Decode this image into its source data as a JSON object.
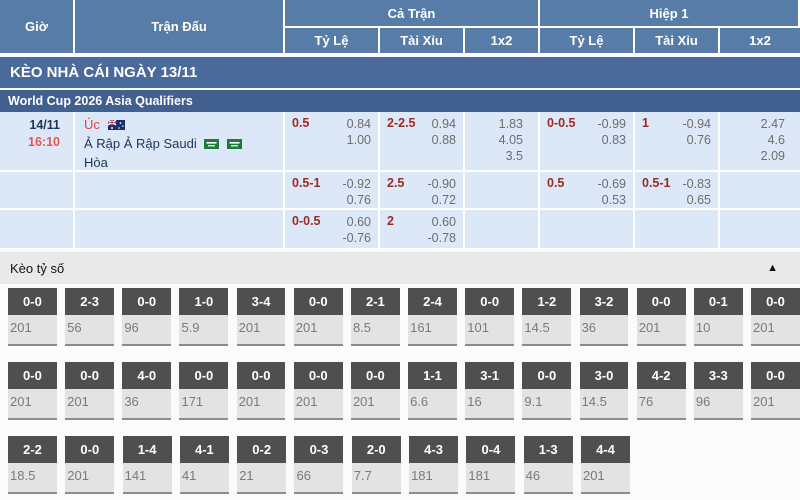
{
  "header": {
    "col_time": "Giờ",
    "col_match": "Trận Đấu",
    "group_full": "Cả Trận",
    "group_half": "Hiệp 1",
    "sub_handicap": "Tỷ Lệ",
    "sub_over_under": "Tài Xỉu",
    "sub_1x2": "1x2"
  },
  "banner": {
    "title": "KÈO NHÀ CÁI NGÀY 13/11"
  },
  "league": {
    "name": "World Cup 2026 Asia Qualifiers"
  },
  "match": {
    "date": "14/11",
    "time": "16:10",
    "home": "Úc",
    "away": "Ả Rập Ả Rập Saudi",
    "draw": "Hòa",
    "rows": [
      {
        "ft_hdp": "0.5",
        "ft_hdp_odds": [
          "0.84",
          "1.00"
        ],
        "ft_ou": "2-2.5",
        "ft_ou_odds": [
          "0.94",
          "0.88"
        ],
        "ft_1x2": [
          "1.83",
          "4.05",
          "3.5"
        ],
        "h1_hdp": "0-0.5",
        "h1_hdp_odds": [
          "-0.99",
          "0.83"
        ],
        "h1_ou": "1",
        "h1_ou_odds": [
          "-0.94",
          "0.76"
        ],
        "h1_1x2": [
          "2.47",
          "4.6",
          "2.09"
        ]
      },
      {
        "ft_hdp": "0.5-1",
        "ft_hdp_odds": [
          "-0.92",
          "0.76"
        ],
        "ft_ou": "2.5",
        "ft_ou_odds": [
          "-0.90",
          "0.72"
        ],
        "ft_1x2": [],
        "h1_hdp": "0.5",
        "h1_hdp_odds": [
          "-0.69",
          "0.53"
        ],
        "h1_ou": "0.5-1",
        "h1_ou_odds": [
          "-0.83",
          "0.65"
        ],
        "h1_1x2": []
      },
      {
        "ft_hdp": "0-0.5",
        "ft_hdp_odds": [
          "0.60",
          "-0.76"
        ],
        "ft_ou": "2",
        "ft_ou_odds": [
          "0.60",
          "-0.78"
        ],
        "ft_1x2": [],
        "h1_1x2": []
      }
    ]
  },
  "score_section": {
    "title": "Kèo tỷ số",
    "collapse_icon": "▲",
    "rows": [
      [
        {
          "score": "0-0",
          "odds": "201"
        },
        {
          "score": "2-3",
          "odds": "56"
        },
        {
          "score": "0-0",
          "odds": "96"
        },
        {
          "score": "1-0",
          "odds": "5.9"
        },
        {
          "score": "3-4",
          "odds": "201"
        },
        {
          "score": "0-0",
          "odds": "201"
        },
        {
          "score": "2-1",
          "odds": "8.5"
        },
        {
          "score": "2-4",
          "odds": "161"
        },
        {
          "score": "0-0",
          "odds": "101"
        },
        {
          "score": "1-2",
          "odds": "14.5"
        },
        {
          "score": "3-2",
          "odds": "36"
        },
        {
          "score": "0-0",
          "odds": "201"
        },
        {
          "score": "0-1",
          "odds": "10"
        },
        {
          "score": "0-0",
          "odds": "201"
        }
      ],
      [
        {
          "score": "0-0",
          "odds": "201"
        },
        {
          "score": "0-0",
          "odds": "201"
        },
        {
          "score": "4-0",
          "odds": "36"
        },
        {
          "score": "0-0",
          "odds": "171"
        },
        {
          "score": "0-0",
          "odds": "201"
        },
        {
          "score": "0-0",
          "odds": "201"
        },
        {
          "score": "0-0",
          "odds": "201"
        },
        {
          "score": "1-1",
          "odds": "6.6"
        },
        {
          "score": "3-1",
          "odds": "16"
        },
        {
          "score": "0-0",
          "odds": "9.1"
        },
        {
          "score": "3-0",
          "odds": "14.5"
        },
        {
          "score": "4-2",
          "odds": "76"
        },
        {
          "score": "3-3",
          "odds": "96"
        },
        {
          "score": "0-0",
          "odds": "201"
        }
      ],
      [
        {
          "score": "2-2",
          "odds": "18.5"
        },
        {
          "score": "0-0",
          "odds": "201"
        },
        {
          "score": "1-4",
          "odds": "141"
        },
        {
          "score": "4-1",
          "odds": "41"
        },
        {
          "score": "0-2",
          "odds": "21"
        },
        {
          "score": "0-3",
          "odds": "66"
        },
        {
          "score": "2-0",
          "odds": "7.7"
        },
        {
          "score": "4-3",
          "odds": "181"
        },
        {
          "score": "0-4",
          "odds": "181"
        },
        {
          "score": "1-3",
          "odds": "46"
        },
        {
          "score": "4-4",
          "odds": "201"
        }
      ]
    ]
  }
}
